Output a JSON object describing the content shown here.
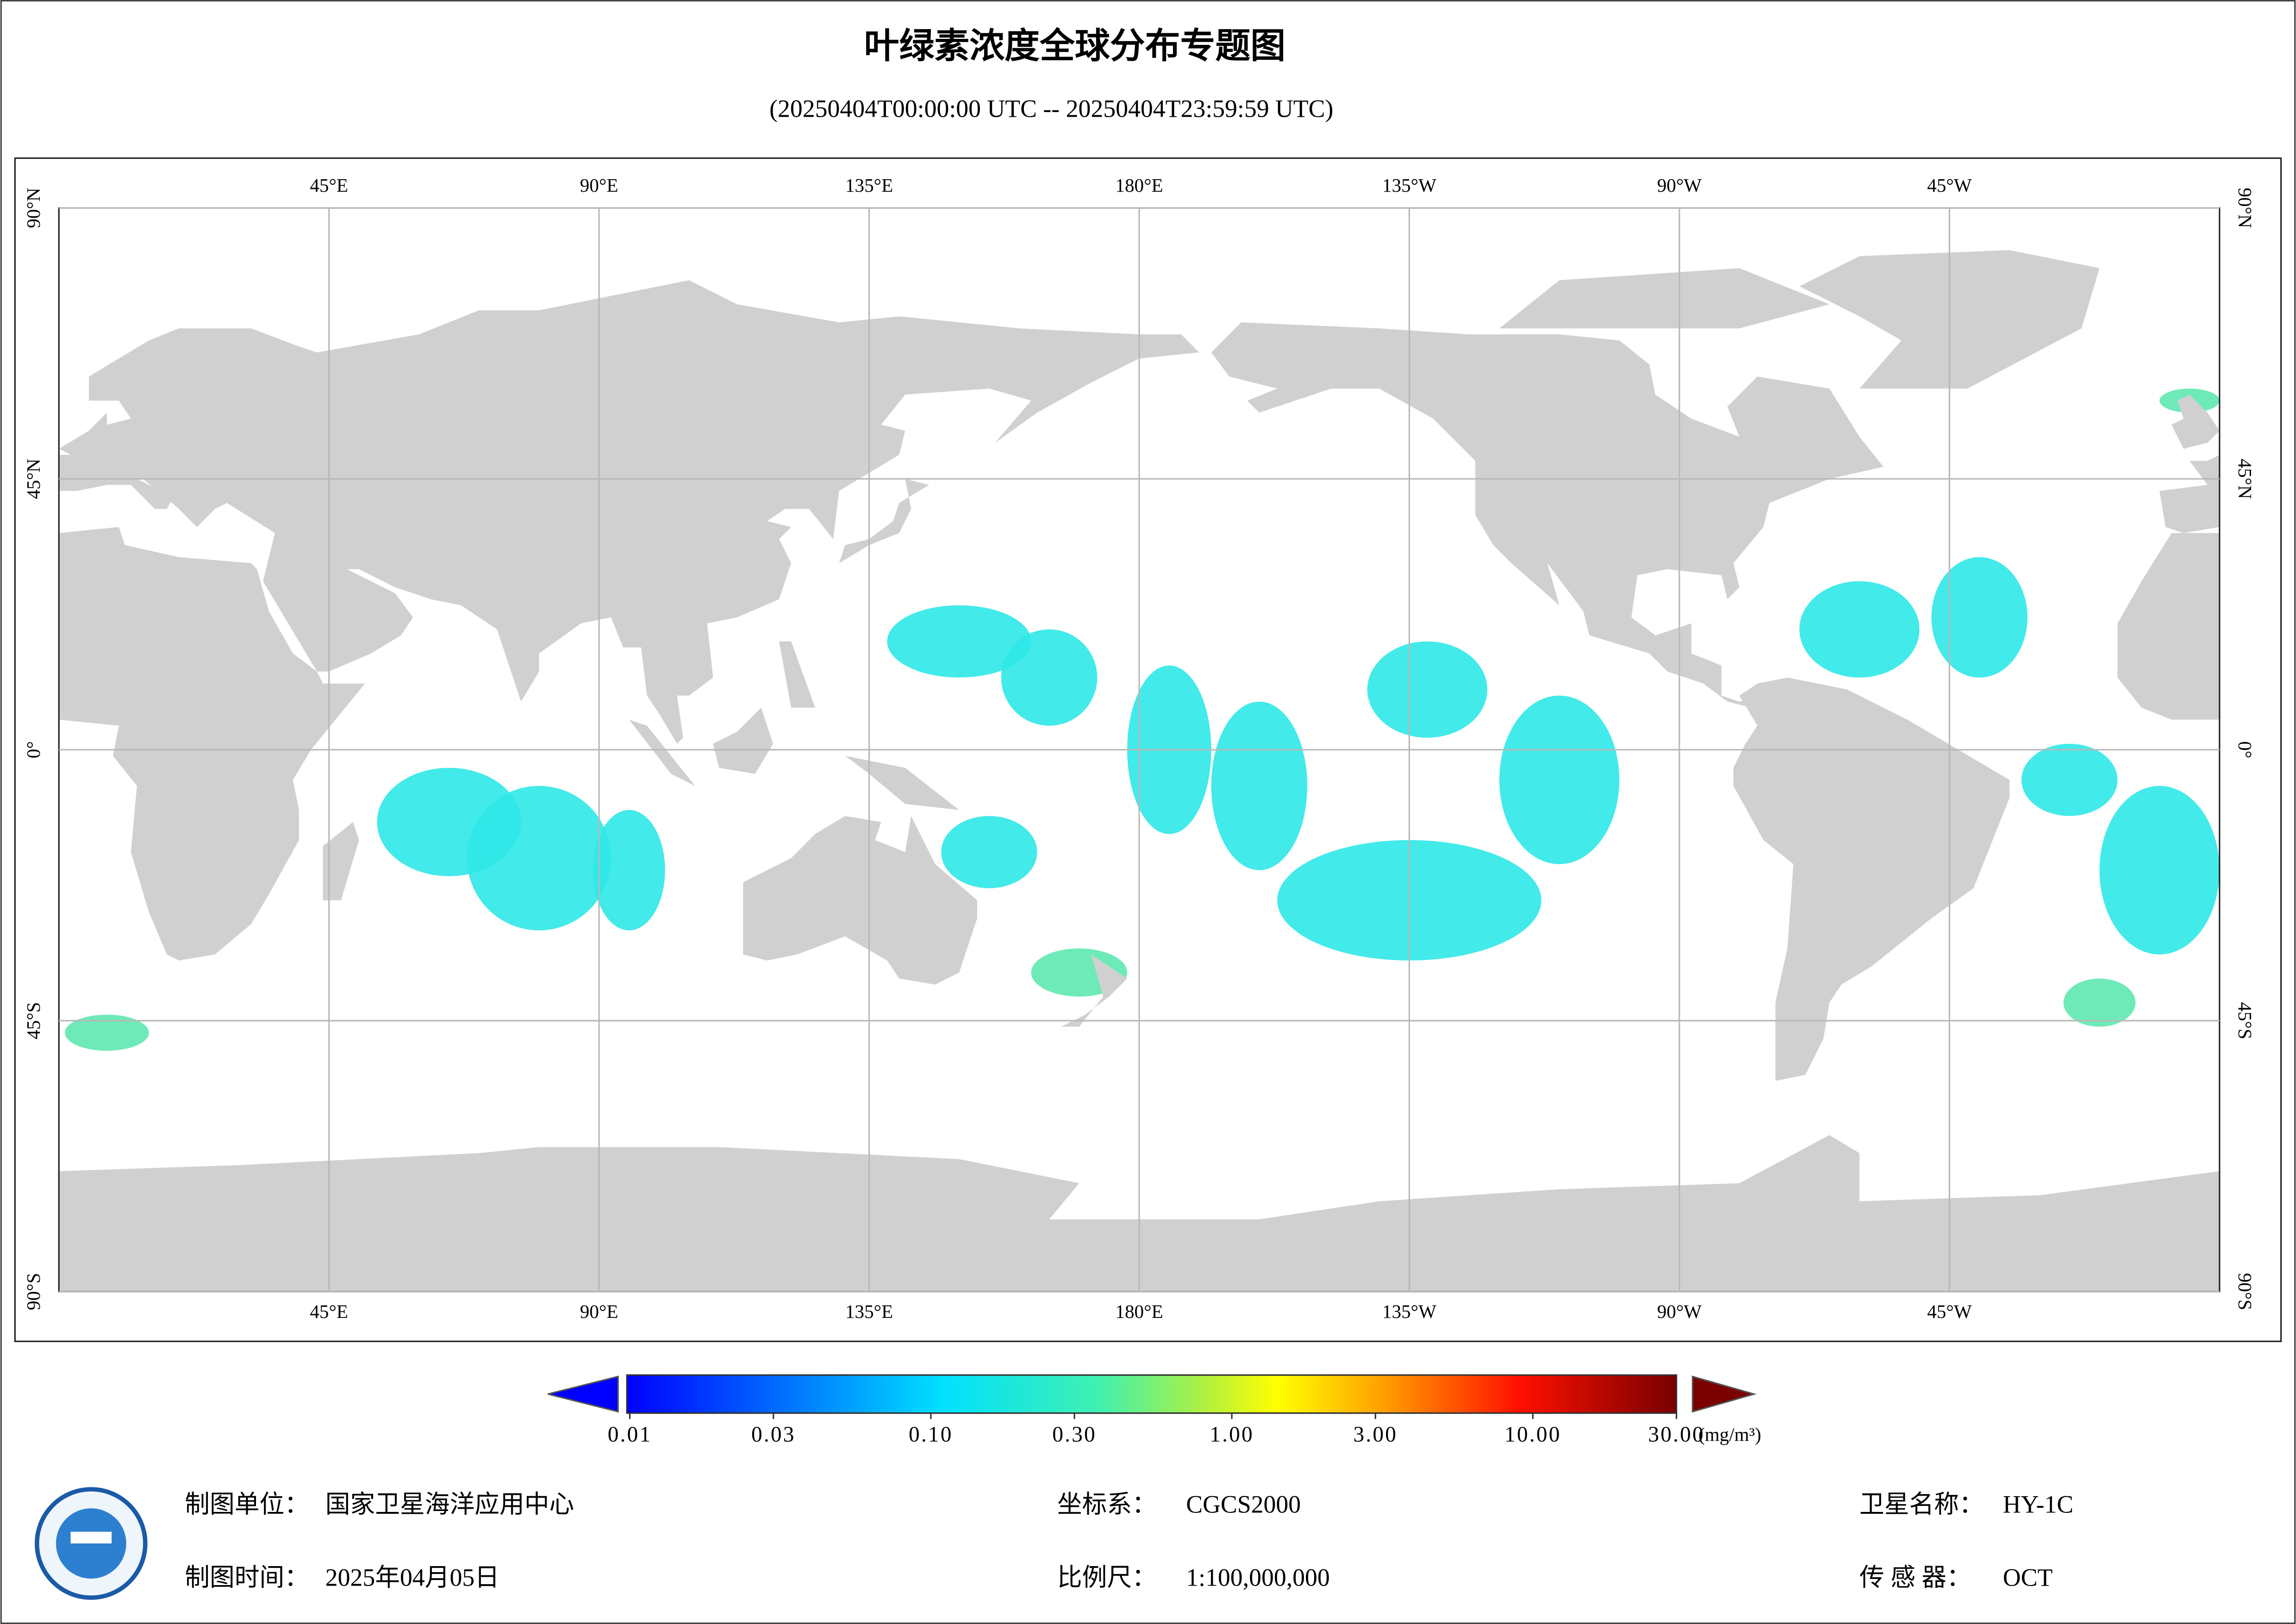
{
  "header": {
    "title": "叶绿素浓度全球分布专题图",
    "subtitle": "(20250404T00:00:00 UTC -- 20250404T23:59:59 UTC)"
  },
  "map": {
    "lon_ticks": [
      {
        "value": 45,
        "label": "45°E"
      },
      {
        "value": 90,
        "label": "90°E"
      },
      {
        "value": 135,
        "label": "135°E"
      },
      {
        "value": 180,
        "label": "180°E"
      },
      {
        "value": 225,
        "label": "135°W"
      },
      {
        "value": 270,
        "label": "90°W"
      },
      {
        "value": 315,
        "label": "45°W"
      }
    ],
    "lat_ticks": [
      {
        "value": 90,
        "label": "90°N"
      },
      {
        "value": 45,
        "label": "45°N"
      },
      {
        "value": 0,
        "label": "0°"
      },
      {
        "value": -45,
        "label": "45°S"
      },
      {
        "value": -90,
        "label": "90°S"
      }
    ]
  },
  "colorbar": {
    "log": true,
    "min": 0.01,
    "max": 30,
    "ticks": [
      {
        "value": 0.01,
        "label": "0.01"
      },
      {
        "value": 0.03,
        "label": "0.03"
      },
      {
        "value": 0.1,
        "label": "0.10"
      },
      {
        "value": 0.3,
        "label": "0.30"
      },
      {
        "value": 1,
        "label": "1.00"
      },
      {
        "value": 3,
        "label": "3.00"
      },
      {
        "value": 10,
        "label": "10.00"
      },
      {
        "value": 30,
        "label": "30.00"
      }
    ],
    "unit": "(mg/m³)"
  },
  "footer": {
    "unit_label": "制图单位：",
    "unit": "国家卫星海洋应用中心",
    "date_label": "制图时间：",
    "date": "2025年04月05日",
    "crs_label": "坐标系：",
    "crs": "CGCS2000",
    "scale_label": "比例尺：",
    "scale": "1:100,000,000",
    "satellite_label": "卫星名称：",
    "satellite": "HY-1C",
    "sensor_label": "传 感 器：",
    "sensor": "OCT"
  }
}
